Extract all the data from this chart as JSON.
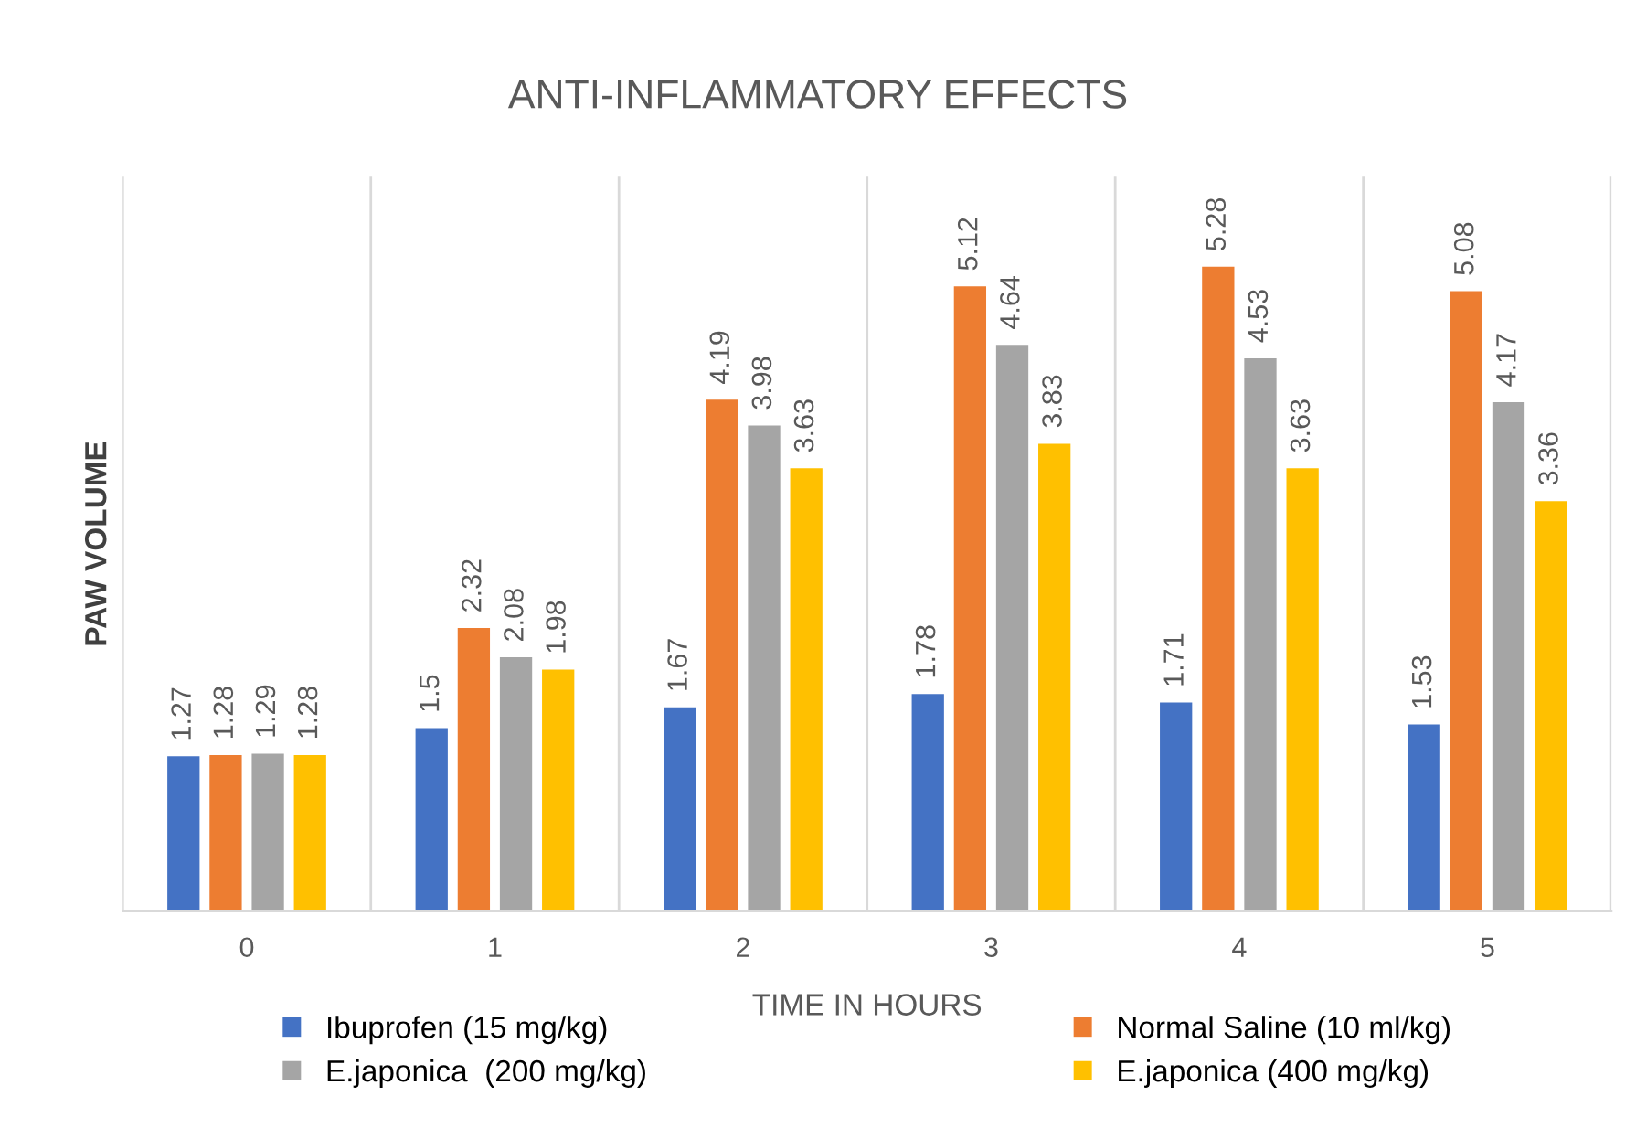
{
  "chart_data": {
    "type": "bar",
    "title": "ANTI-INFLAMMATORY EFFECTS",
    "xlabel": "TIME IN HOURS",
    "ylabel": "PAW VOLUME",
    "categories": [
      "0",
      "1",
      "2",
      "3",
      "4",
      "5"
    ],
    "series": [
      {
        "name": "Ibuprofen (15 mg/kg)",
        "color": "#4472c4",
        "values": [
          1.27,
          1.5,
          1.67,
          1.78,
          1.71,
          1.53
        ]
      },
      {
        "name": "Normal Saline (10 ml/kg)",
        "color": "#ed7d31",
        "values": [
          1.28,
          2.32,
          4.19,
          5.12,
          5.28,
          5.08
        ]
      },
      {
        "name": "E.japonica  (200 mg/kg)",
        "color": "#a5a5a5",
        "values": [
          1.29,
          2.08,
          3.98,
          4.64,
          4.53,
          4.17
        ]
      },
      {
        "name": "E.japonica (400 mg/kg)",
        "color": "#ffc000",
        "values": [
          1.28,
          1.98,
          3.63,
          3.83,
          3.63,
          3.36
        ]
      }
    ],
    "relative": false,
    "data_labels": true,
    "grid": "x",
    "legend": "bottom",
    "tick_labels": "x"
  }
}
